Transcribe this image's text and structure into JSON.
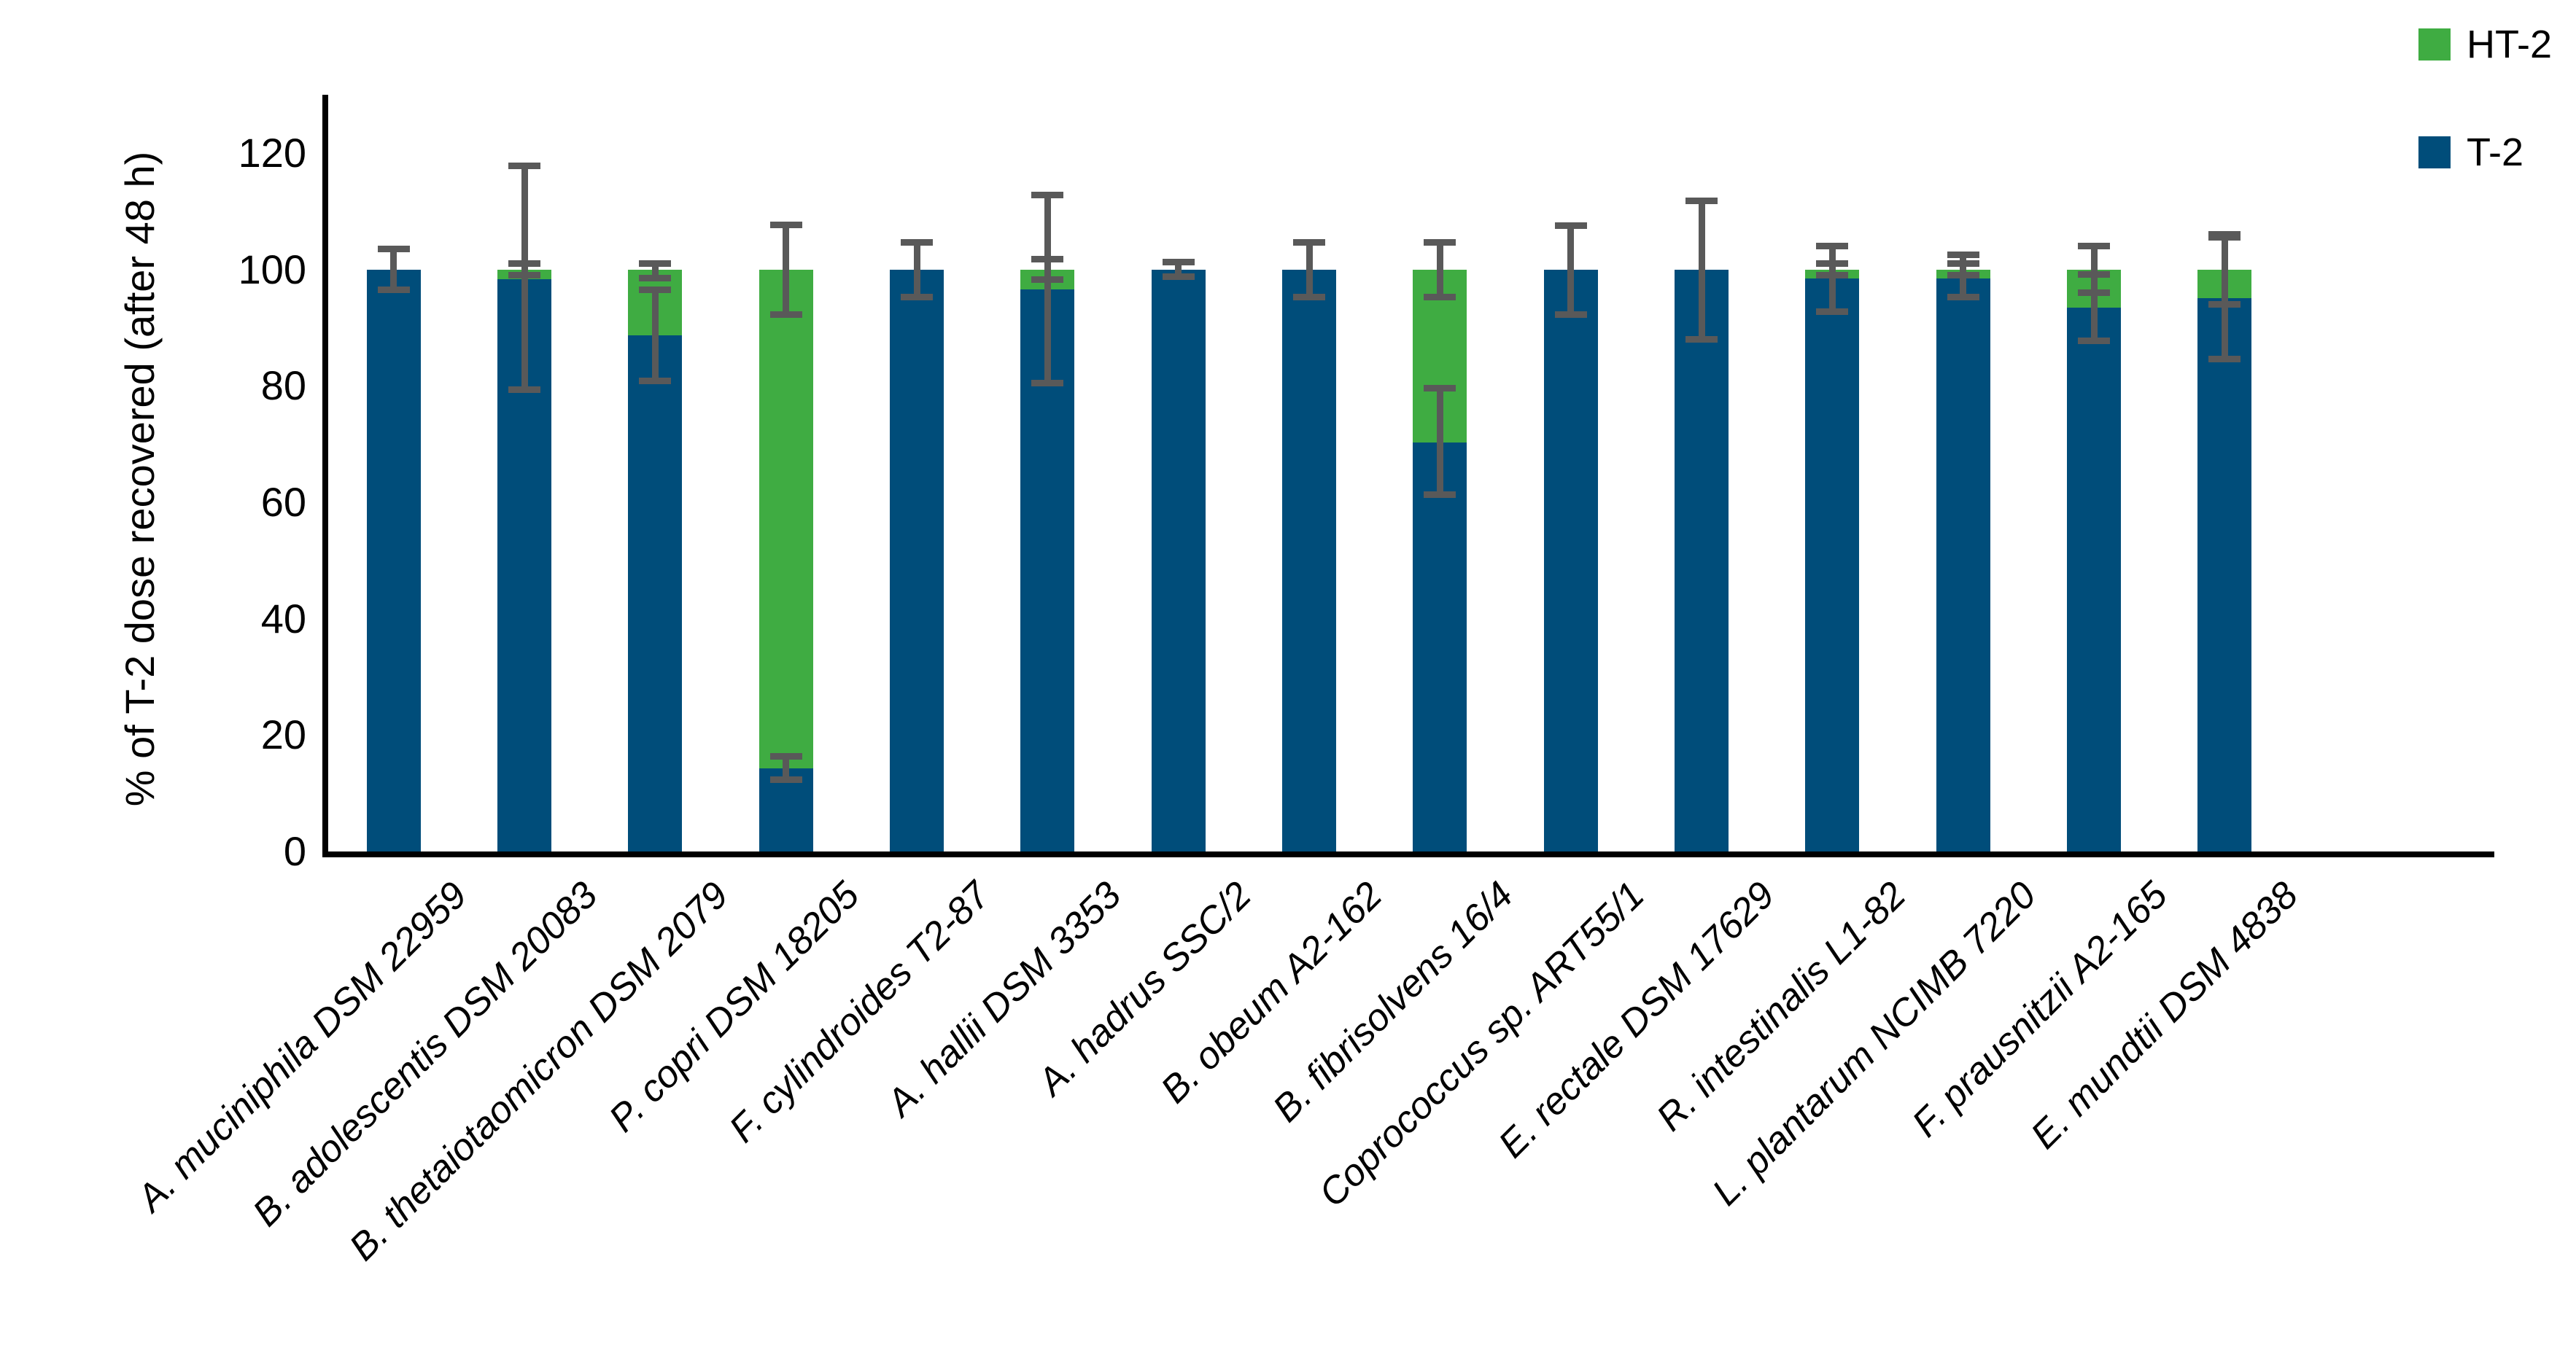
{
  "chart_data": {
    "type": "bar",
    "stacked": true,
    "title": "",
    "xlabel": "",
    "ylabel": "% of T-2 dose recovered (after 48 h)",
    "ylim": [
      0,
      130
    ],
    "yticks": [
      0,
      20,
      40,
      60,
      80,
      100,
      120
    ],
    "grid": false,
    "xtick_rotation_deg": 45,
    "legend": {
      "position": "top-right",
      "entries": [
        {
          "label": "HT-2",
          "color": "#3FAC42"
        },
        {
          "label": "T-2",
          "color": "#004D7A"
        }
      ]
    },
    "categories": [
      "A. muciniphila DSM 22959",
      "B. adolescentis DSM 20083",
      "B. thetaiotaomicron DSM 2079",
      "P. copri DSM 18205",
      "F. cylindroides T2-87",
      "A. hallii DSM 3353",
      "A. hadrus SSC/2",
      "B. obeum A2-162",
      "B. fibrisolvens 16/4",
      "Coprococcus sp. ART55/1",
      "E. rectale DSM 17629",
      "R. intestinalis L1-82",
      "L. plantarum NCIMB 7220",
      "F. prausnitzii A2-165",
      "E. mundtii DSM 4838"
    ],
    "series": [
      {
        "name": "T-2",
        "color": "#004D7A",
        "values": [
          100,
          98.3,
          88.7,
          14.3,
          100,
          96.5,
          100,
          100,
          70.3,
          100,
          100,
          98.5,
          98.5,
          93.4,
          95.0
        ]
      },
      {
        "name": "HT-2",
        "color": "#3FAC42",
        "values": [
          0,
          1.7,
          11.3,
          85.7,
          0,
          3.5,
          0,
          0,
          29.7,
          0,
          0,
          1.5,
          1.5,
          6.6,
          5.0
        ]
      }
    ],
    "error_bars": {
      "color": "#595959",
      "per_category": [
        [
          {
            "at": 100,
            "up": 3.5,
            "down": 3.5
          }
        ],
        [
          {
            "at": 100,
            "up": 1.0,
            "down": 1.0
          },
          {
            "at": 98.3,
            "up": 19.5,
            "down": 19.0
          }
        ],
        [
          {
            "at": 100,
            "up": 1.0,
            "down": 1.5
          },
          {
            "at": 88.7,
            "up": 7.8,
            "down": 7.8
          }
        ],
        [
          {
            "at": 100,
            "up": 7.7,
            "down": 7.7
          },
          {
            "at": 14.3,
            "up": 2.0,
            "down": 2.0
          }
        ],
        [
          {
            "at": 100,
            "up": 4.7,
            "down": 4.7
          }
        ],
        [
          {
            "at": 100,
            "up": 1.7,
            "down": 1.7
          },
          {
            "at": 96.5,
            "up": 16.3,
            "down": 16.0
          }
        ],
        [
          {
            "at": 100,
            "up": 1.2,
            "down": 1.2
          }
        ],
        [
          {
            "at": 100,
            "up": 4.7,
            "down": 4.7
          }
        ],
        [
          {
            "at": 100,
            "up": 4.7,
            "down": 4.7
          },
          {
            "at": 70.3,
            "up": 9.3,
            "down": 9.0
          }
        ],
        [
          {
            "at": 100,
            "up": 7.5,
            "down": 7.8
          }
        ],
        [
          {
            "at": 100,
            "up": 11.8,
            "down": 12.0
          }
        ],
        [
          {
            "at": 100,
            "up": 1.0,
            "down": 1.0
          },
          {
            "at": 98.5,
            "up": 5.5,
            "down": 5.7
          }
        ],
        [
          {
            "at": 100,
            "up": 1.0,
            "down": 1.0
          },
          {
            "at": 98.5,
            "up": 4.0,
            "down": 3.3
          }
        ],
        [
          {
            "at": 100,
            "up": 4.0,
            "down": 4.0
          },
          {
            "at": 93.4,
            "up": 5.7,
            "down": 5.7
          }
        ],
        [
          {
            "at": 100,
            "up": 6.0,
            "down": 6.0
          },
          {
            "at": 95.0,
            "up": 10.5,
            "down": 10.4
          }
        ]
      ]
    }
  },
  "colors": {
    "axis": "#000000",
    "background": "#ffffff",
    "error_bar": "#595959",
    "t2": "#004D7A",
    "ht2": "#3FAC42"
  }
}
